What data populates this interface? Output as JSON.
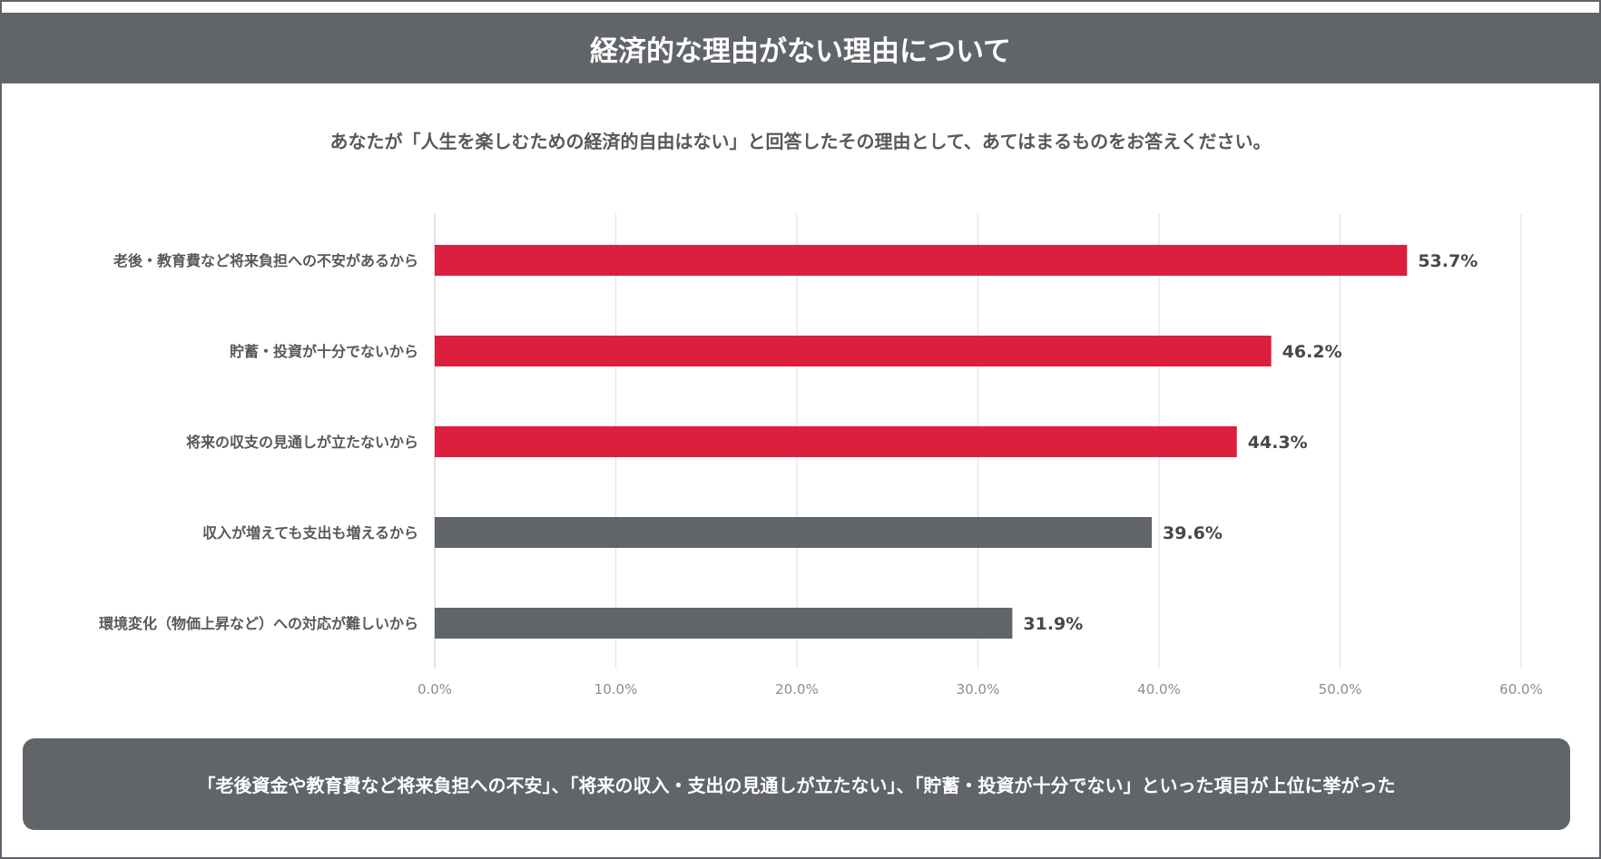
{
  "header": {
    "title": "経済的な理由がない理由について"
  },
  "question": "あなたが「人生を楽しむための経済的自由はない」と回答したその理由として、あてはまるものをお答えください。",
  "summary": "「老後資金や教育費など将来負担への不安」、「将来の収入・支出の見通しが立たない」、「貯蓄・投資が十分でない」といった項目が上位に挙がった",
  "colors": {
    "highlight": "#dc1f3f",
    "other": "#616469",
    "grid": "#e2e2e2"
  },
  "chart_data": {
    "type": "bar",
    "orientation": "horizontal",
    "categories": [
      "老後・教育費など将来負担への不安があるから",
      "貯蓄・投資が十分でないから",
      "将来の収支の見通しが立たないから",
      "収入が増えても支出も増えるから",
      "環境変化（物価上昇など）への対応が難しいから"
    ],
    "values": [
      53.7,
      46.2,
      44.3,
      39.6,
      31.9
    ],
    "value_labels": [
      "53.7%",
      "46.2%",
      "44.3%",
      "39.6%",
      "31.9%"
    ],
    "highlighted": [
      true,
      true,
      true,
      false,
      false
    ],
    "xlim": [
      0,
      60
    ],
    "xticks": [
      "0.0%",
      "10.0%",
      "20.0%",
      "30.0%",
      "40.0%",
      "50.0%",
      "60.0%"
    ],
    "grid": true,
    "legend": "none"
  }
}
